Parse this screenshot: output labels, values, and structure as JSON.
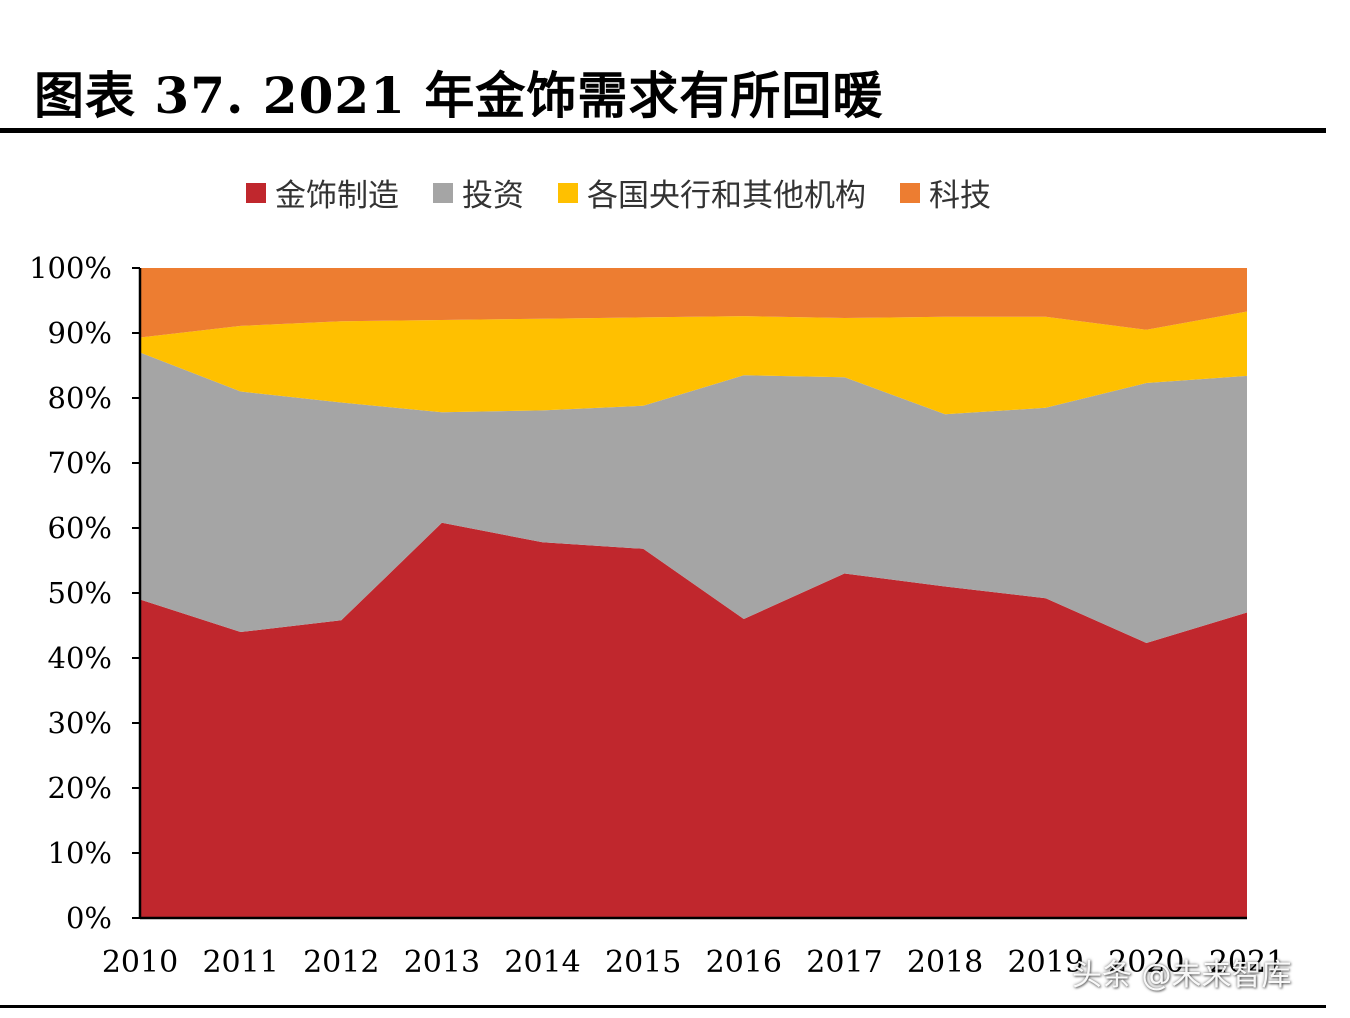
{
  "title": "图表 37. 2021 年金饰需求有所回暖",
  "watermark": "头条 @未来智库",
  "chart_data": {
    "type": "area",
    "stacked": "percent",
    "categories": [
      "2010",
      "2011",
      "2012",
      "2013",
      "2014",
      "2015",
      "2016",
      "2017",
      "2018",
      "2019",
      "2020",
      "2021"
    ],
    "series": [
      {
        "name": "金饰制造",
        "color": "#c0272d",
        "values": [
          49,
          44,
          45.8,
          60.8,
          57.8,
          56.8,
          46,
          53,
          51,
          49.2,
          42.3,
          47
        ]
      },
      {
        "name": "投资",
        "color": "#a5a5a5",
        "values": [
          38,
          37,
          33.5,
          17,
          20.3,
          22,
          37.5,
          30.2,
          26.5,
          29.3,
          40,
          36.4
        ]
      },
      {
        "name": "各国央行和其他机构",
        "color": "#ffc000",
        "values": [
          2.3,
          10.1,
          12.5,
          14.2,
          14.1,
          13.6,
          9.1,
          9.1,
          15,
          14,
          8.2,
          9.9
        ]
      },
      {
        "name": "科技",
        "color": "#ed7d31",
        "values": [
          10.7,
          8.9,
          8.2,
          8,
          7.8,
          7.6,
          7.4,
          7.7,
          7.5,
          7.5,
          9.5,
          6.7
        ]
      }
    ],
    "ylim": [
      0,
      100
    ],
    "yticks": [
      "0%",
      "10%",
      "20%",
      "30%",
      "40%",
      "50%",
      "60%",
      "70%",
      "80%",
      "90%",
      "100%"
    ],
    "legend_position": "top",
    "grid": false
  }
}
